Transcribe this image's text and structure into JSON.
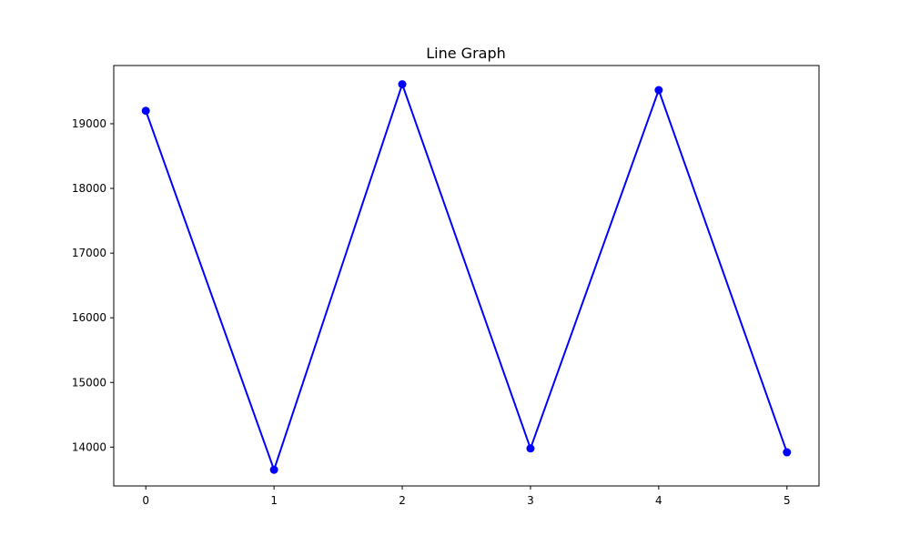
{
  "chart_data": {
    "type": "line",
    "title": "Line Graph",
    "xlabel": "",
    "ylabel": "",
    "x": [
      0,
      1,
      2,
      3,
      4,
      5
    ],
    "xticks": [
      0,
      1,
      2,
      3,
      4,
      5
    ],
    "yticks": [
      14000,
      15000,
      16000,
      17000,
      18000,
      19000
    ],
    "xlim": [
      -0.25,
      5.25
    ],
    "ylim": [
      13400,
      19900
    ],
    "grid": false,
    "series": [
      {
        "values": [
          19200,
          13650,
          19610,
          13980,
          19520,
          13920
        ],
        "color": "#0000ff",
        "marker": "circle"
      }
    ]
  }
}
